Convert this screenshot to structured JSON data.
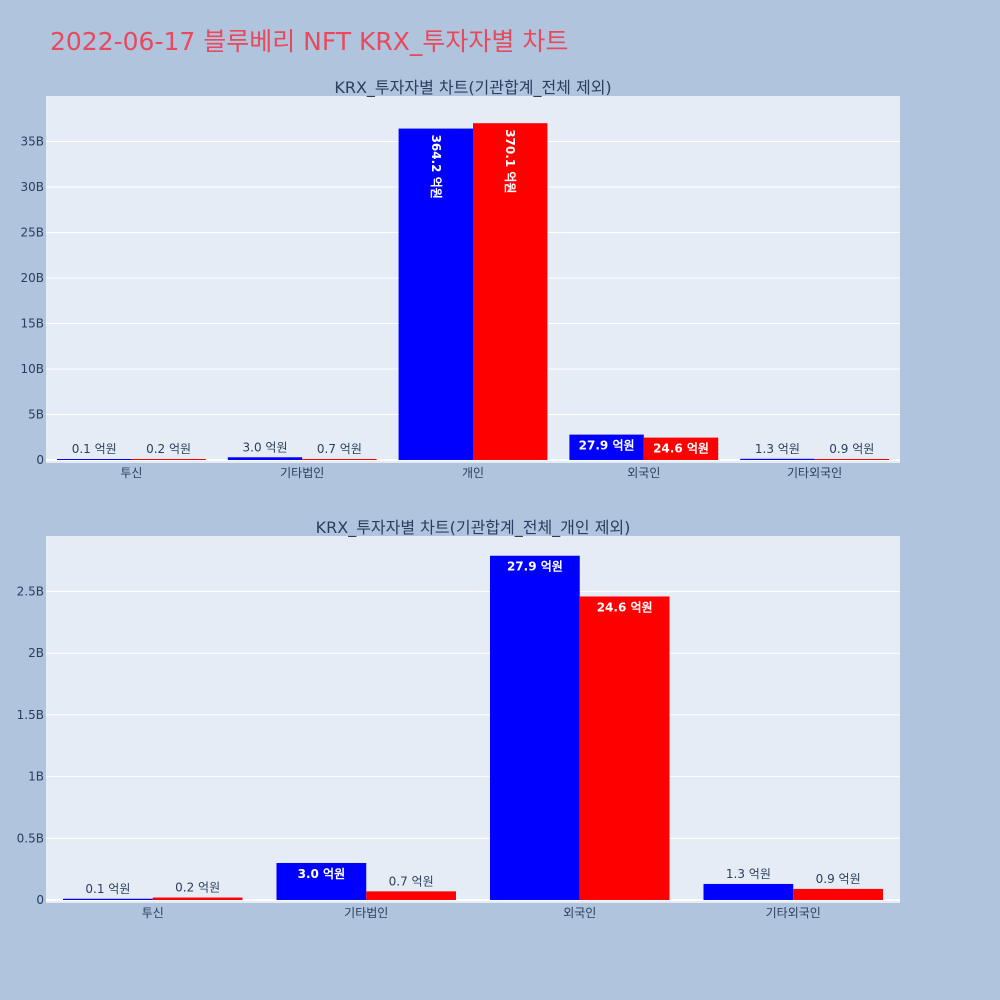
{
  "title": "2022-06-17 블루베리 NFT KRX_투자자별 차트",
  "colors": {
    "buy": "#0000ff",
    "sell": "#ff0000",
    "plot_bg": "#e5ecf6",
    "paper_bg": "#b0c4de",
    "title": "#e8495c",
    "text": "#2a3f5f"
  },
  "chart_data": [
    {
      "type": "bar",
      "title": "KRX_투자자별 차트(기관합계_전체 제외)",
      "categories": [
        "투신",
        "기타법인",
        "개인",
        "외국인",
        "기타외국인"
      ],
      "ylim": [
        0,
        40000000000
      ],
      "yticks": [
        0,
        5000000000,
        10000000000,
        15000000000,
        20000000000,
        25000000000,
        30000000000,
        35000000000
      ],
      "ytick_labels": [
        "0",
        "5B",
        "10B",
        "15B",
        "20B",
        "25B",
        "30B",
        "35B"
      ],
      "grid": true,
      "series": [
        {
          "values": [
            10000000,
            300000000,
            36420000000,
            2790000000,
            130000000
          ],
          "labels": [
            "0.1 억원",
            "3.0 억원",
            "364.2 억원",
            "27.9 억원",
            "1.3 억원"
          ]
        },
        {
          "values": [
            20000000,
            70000000,
            37010000000,
            2460000000,
            90000000
          ],
          "labels": [
            "0.2 억원",
            "0.7 억원",
            "370.1 억원",
            "24.6 억원",
            "0.9 억원"
          ]
        }
      ]
    },
    {
      "type": "bar",
      "title": "KRX_투자자별 차트(기관합계_전체_개인 제외)",
      "categories": [
        "투신",
        "기타법인",
        "외국인",
        "기타외국인"
      ],
      "ylim": [
        0,
        2950000000
      ],
      "yticks": [
        0,
        500000000,
        1000000000,
        1500000000,
        2000000000,
        2500000000
      ],
      "ytick_labels": [
        "0",
        "0.5B",
        "1B",
        "1.5B",
        "2B",
        "2.5B"
      ],
      "grid": true,
      "series": [
        {
          "values": [
            10000000,
            300000000,
            2790000000,
            130000000
          ],
          "labels": [
            "0.1 억원",
            "3.0 억원",
            "27.9 억원",
            "1.3 억원"
          ]
        },
        {
          "values": [
            20000000,
            70000000,
            2460000000,
            90000000
          ],
          "labels": [
            "0.2 억원",
            "0.7 억원",
            "24.6 억원",
            "0.9 억원"
          ]
        }
      ]
    }
  ]
}
